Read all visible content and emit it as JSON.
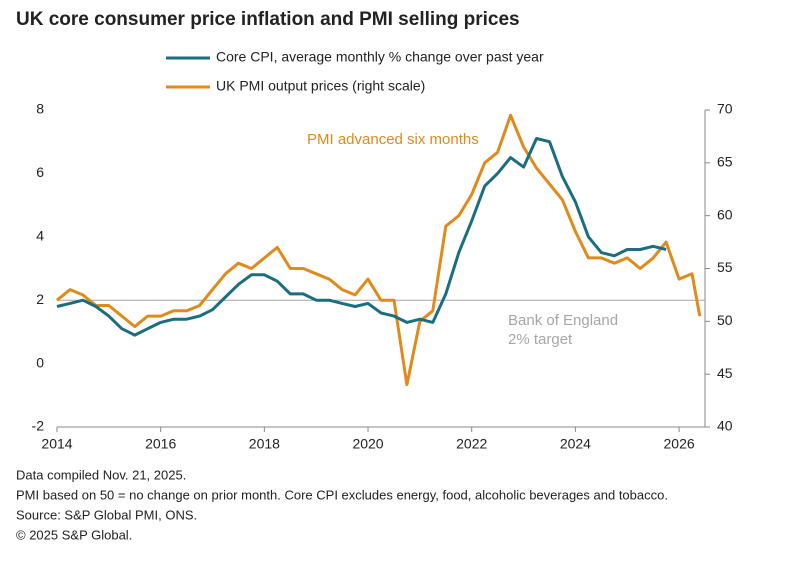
{
  "chart_data": {
    "type": "line",
    "title": "UK core consumer price inflation and PMI selling prices",
    "xlim": [
      2014,
      2026.5
    ],
    "xticks": [
      2014,
      2016,
      2018,
      2020,
      2022,
      2024,
      2026
    ],
    "ylim": [
      -2,
      8
    ],
    "yticks": [
      -2,
      0,
      2,
      4,
      6,
      8
    ],
    "y2lim": [
      40,
      70
    ],
    "y2ticks": [
      40,
      45,
      50,
      55,
      60,
      65,
      70
    ],
    "grid": false,
    "reference_line": {
      "value": 2,
      "label_lines": [
        "Bank of England",
        "2% target"
      ],
      "color": "#a6a6a6"
    },
    "annotation": "PMI advanced six months",
    "series": [
      {
        "name": "Core CPI, average monthly % change over past year",
        "color": "#1b6d80",
        "x": [
          2014.0,
          2014.25,
          2014.5,
          2014.75,
          2015.0,
          2015.25,
          2015.5,
          2015.75,
          2016.0,
          2016.25,
          2016.5,
          2016.75,
          2017.0,
          2017.25,
          2017.5,
          2017.75,
          2018.0,
          2018.25,
          2018.5,
          2018.75,
          2019.0,
          2019.25,
          2019.5,
          2019.75,
          2020.0,
          2020.25,
          2020.5,
          2020.75,
          2021.0,
          2021.25,
          2021.5,
          2021.75,
          2022.0,
          2022.25,
          2022.5,
          2022.75,
          2023.0,
          2023.25,
          2023.5,
          2023.75,
          2024.0,
          2024.25,
          2024.5,
          2024.75,
          2025.0,
          2025.25,
          2025.5,
          2025.75
        ],
        "values": [
          1.8,
          1.9,
          2.0,
          1.8,
          1.5,
          1.1,
          0.9,
          1.1,
          1.3,
          1.4,
          1.4,
          1.5,
          1.7,
          2.1,
          2.5,
          2.8,
          2.8,
          2.6,
          2.2,
          2.2,
          2.0,
          2.0,
          1.9,
          1.8,
          1.9,
          1.6,
          1.5,
          1.3,
          1.4,
          1.3,
          2.2,
          3.5,
          4.5,
          5.6,
          6.0,
          6.5,
          6.2,
          7.1,
          7.0,
          5.9,
          5.1,
          4.0,
          3.5,
          3.4,
          3.6,
          3.6,
          3.7,
          3.6
        ]
      },
      {
        "name": "UK PMI output prices (right scale)",
        "color": "#e08a1c",
        "axis": "y2",
        "x": [
          2014.0,
          2014.25,
          2014.5,
          2014.75,
          2015.0,
          2015.25,
          2015.5,
          2015.75,
          2016.0,
          2016.25,
          2016.5,
          2016.75,
          2017.0,
          2017.25,
          2017.5,
          2017.75,
          2018.0,
          2018.25,
          2018.5,
          2018.75,
          2019.0,
          2019.25,
          2019.5,
          2019.75,
          2020.0,
          2020.25,
          2020.5,
          2020.75,
          2021.0,
          2021.25,
          2021.5,
          2021.75,
          2022.0,
          2022.25,
          2022.5,
          2022.75,
          2023.0,
          2023.25,
          2023.5,
          2023.75,
          2024.0,
          2024.25,
          2024.5,
          2024.75,
          2025.0,
          2025.25,
          2025.5,
          2025.75,
          2026.0,
          2026.25,
          2026.4
        ],
        "values": [
          52,
          53,
          52.5,
          51.5,
          51.5,
          50.5,
          49.5,
          50.5,
          50.5,
          51,
          51,
          51.5,
          53,
          54.5,
          55.5,
          55,
          56,
          57,
          55,
          55,
          54.5,
          54,
          53,
          52.5,
          54,
          52,
          52,
          44,
          50,
          51,
          59,
          60,
          62,
          65,
          66,
          69.5,
          66.5,
          64.5,
          63,
          61.5,
          58.5,
          56,
          56,
          55.5,
          56,
          55,
          56,
          57.5,
          54,
          54.5,
          50.5
        ]
      }
    ],
    "footnotes": [
      "Data compiled Nov. 21, 2025.",
      "PMI based on 50 = no change on prior month. Core CPI excludes energy, food, alcoholic beverages and tobacco.",
      "Source: S&P Global PMI, ONS.",
      "© 2025 S&P Global."
    ]
  }
}
